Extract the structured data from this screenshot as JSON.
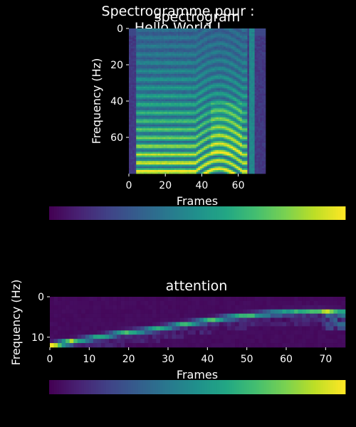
{
  "figure": {
    "suptitle_line1": "Spectrogramme pour :",
    "suptitle_line2": "Hello World !",
    "background": "#000000",
    "text_color": "#ffffff",
    "colormap": "viridis"
  },
  "chart_data": [
    {
      "type": "heatmap",
      "title": "spectrogram",
      "xlabel": "Frames",
      "ylabel": "Frequency (Hz)",
      "xlim": [
        0,
        75
      ],
      "ylim": [
        80,
        0
      ],
      "x_ticks": [
        0,
        20,
        40,
        60
      ],
      "y_ticks": [
        0,
        20,
        40,
        60
      ],
      "x_tick_labels": [
        "0",
        "20",
        "40",
        "60"
      ],
      "y_tick_labels": [
        "0",
        "20",
        "40",
        "60"
      ],
      "n_frames": 75,
      "n_freq_bins": 80,
      "description_of_values": "mel-spectrogram of the utterance 'Hello World !'; speech activity roughly frames 5-65, strong harmonic bands in the lower bins (larger row index), with a bright vertical artefact near frame 68",
      "colorbar": {
        "orientation": "horizontal",
        "ticks": []
      }
    },
    {
      "type": "heatmap",
      "title": "attention",
      "xlabel": "Frames",
      "ylabel": "Frequency (Hz)",
      "xlim": [
        0,
        75
      ],
      "ylim": [
        12.5,
        0
      ],
      "x_ticks": [
        0,
        10,
        20,
        30,
        40,
        50,
        60,
        70
      ],
      "y_ticks": [
        0,
        10
      ],
      "x_tick_labels": [
        "0",
        "10",
        "20",
        "30",
        "40",
        "50",
        "60",
        "70"
      ],
      "y_tick_labels": [
        "0",
        "10"
      ],
      "n_frames": 75,
      "n_rows": 12,
      "alignment_path": [
        [
          0,
          11.5
        ],
        [
          3,
          11
        ],
        [
          8,
          10.2
        ],
        [
          13,
          9.4
        ],
        [
          18,
          8.6
        ],
        [
          23,
          8.1
        ],
        [
          28,
          7.4
        ],
        [
          33,
          6.6
        ],
        [
          38,
          5.9
        ],
        [
          43,
          5.2
        ],
        [
          48,
          4.6
        ],
        [
          53,
          4.2
        ],
        [
          58,
          3.8
        ],
        [
          63,
          3.6
        ],
        [
          68,
          3.5
        ],
        [
          72,
          3.7
        ],
        [
          75,
          4
        ]
      ],
      "colorbar": {
        "orientation": "horizontal",
        "ticks": []
      }
    }
  ]
}
